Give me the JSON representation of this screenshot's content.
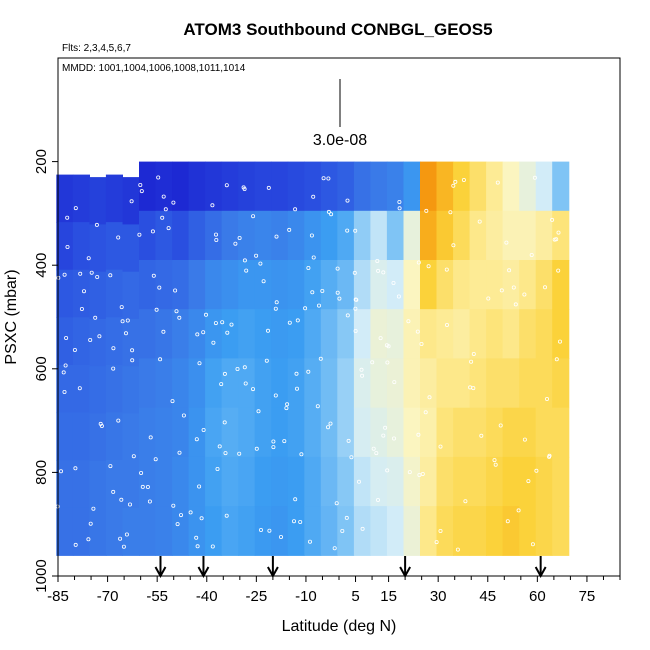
{
  "chart_data": {
    "type": "heatmap",
    "title": "ATOM3 Southbound CONBGL_GEOS5",
    "flights_note": "Flts: 2,3,4,5,6,7",
    "dates_note": "MMDD: 1001,1004,1006,1008,1011,1014",
    "xlabel": "Latitude (deg N)",
    "ylabel": "PSXC (mbar)",
    "xlim": [
      -85,
      85
    ],
    "ylim": [
      1000,
      0
    ],
    "x_ticks": [
      -85,
      -70,
      -55,
      -40,
      -25,
      -10,
      5,
      15,
      30,
      45,
      60,
      75
    ],
    "y_ticks": [
      200,
      400,
      600,
      800,
      1000
    ],
    "scale_bar_label": "3.0e-08",
    "arrow_latitudes": [
      -54,
      -41,
      -20,
      20,
      61
    ],
    "colormap": [
      "#1a1fd0",
      "#2a4fe0",
      "#3a7ae8",
      "#3b9df2",
      "#7fc4f5",
      "#d2ecf8",
      "#fbf5c0",
      "#fde88a",
      "#fbd23a",
      "#f7a414",
      "#ee6a00"
    ],
    "value_scale_note": "blue = low, white = mid, yellow/orange = high",
    "columns": [
      {
        "lat": -83,
        "p_top": 225,
        "p_bot": 960,
        "values": [
          0.05,
          0.08,
          0.12,
          0.14,
          0.16,
          0.17,
          0.18,
          0.18
        ]
      },
      {
        "lat": -78,
        "p_top": 225,
        "p_bot": 960,
        "values": [
          0.06,
          0.1,
          0.13,
          0.15,
          0.16,
          0.17,
          0.18,
          0.18
        ]
      },
      {
        "lat": -73,
        "p_top": 230,
        "p_bot": 960,
        "values": [
          0.07,
          0.11,
          0.14,
          0.16,
          0.17,
          0.18,
          0.19,
          0.19
        ]
      },
      {
        "lat": -68,
        "p_top": 225,
        "p_bot": 960,
        "values": [
          0.06,
          0.12,
          0.15,
          0.17,
          0.18,
          0.19,
          0.2,
          0.2
        ]
      },
      {
        "lat": -63,
        "p_top": 230,
        "p_bot": 960,
        "values": [
          0.05,
          0.12,
          0.16,
          0.18,
          0.19,
          0.2,
          0.2,
          0.21
        ]
      },
      {
        "lat": -58,
        "p_top": 200,
        "p_bot": 960,
        "values": [
          0.02,
          0.1,
          0.15,
          0.18,
          0.2,
          0.21,
          0.21,
          0.21
        ]
      },
      {
        "lat": -53,
        "p_top": 200,
        "p_bot": 960,
        "values": [
          0.03,
          0.12,
          0.16,
          0.19,
          0.21,
          0.22,
          0.22,
          0.22
        ]
      },
      {
        "lat": -48,
        "p_top": 200,
        "p_bot": 960,
        "values": [
          0.02,
          0.1,
          0.17,
          0.21,
          0.23,
          0.23,
          0.24,
          0.24
        ]
      },
      {
        "lat": -43,
        "p_top": 200,
        "p_bot": 960,
        "values": [
          0.04,
          0.14,
          0.2,
          0.24,
          0.26,
          0.27,
          0.27,
          0.27
        ]
      },
      {
        "lat": -38,
        "p_top": 200,
        "p_bot": 960,
        "values": [
          0.05,
          0.17,
          0.24,
          0.28,
          0.31,
          0.32,
          0.31,
          0.3
        ]
      },
      {
        "lat": -33,
        "p_top": 200,
        "p_bot": 960,
        "values": [
          0.06,
          0.2,
          0.26,
          0.3,
          0.33,
          0.34,
          0.33,
          0.32
        ]
      },
      {
        "lat": -28,
        "p_top": 200,
        "p_bot": 960,
        "values": [
          0.07,
          0.22,
          0.28,
          0.31,
          0.33,
          0.33,
          0.32,
          0.31
        ]
      },
      {
        "lat": -23,
        "p_top": 200,
        "p_bot": 960,
        "values": [
          0.08,
          0.23,
          0.28,
          0.3,
          0.31,
          0.31,
          0.3,
          0.29
        ]
      },
      {
        "lat": -18,
        "p_top": 200,
        "p_bot": 960,
        "values": [
          0.08,
          0.22,
          0.27,
          0.29,
          0.3,
          0.3,
          0.29,
          0.28
        ]
      },
      {
        "lat": -13,
        "p_top": 200,
        "p_bot": 960,
        "values": [
          0.09,
          0.24,
          0.28,
          0.3,
          0.31,
          0.31,
          0.3,
          0.3
        ]
      },
      {
        "lat": -8,
        "p_top": 200,
        "p_bot": 960,
        "values": [
          0.1,
          0.27,
          0.31,
          0.33,
          0.34,
          0.34,
          0.33,
          0.33
        ]
      },
      {
        "lat": -3,
        "p_top": 200,
        "p_bot": 960,
        "values": [
          0.12,
          0.3,
          0.34,
          0.37,
          0.38,
          0.38,
          0.37,
          0.36
        ]
      },
      {
        "lat": 2,
        "p_top": 200,
        "p_bot": 960,
        "values": [
          0.14,
          0.33,
          0.37,
          0.41,
          0.43,
          0.43,
          0.41,
          0.4
        ]
      },
      {
        "lat": 7,
        "p_top": 200,
        "p_bot": 960,
        "values": [
          0.18,
          0.42,
          0.46,
          0.5,
          0.52,
          0.51,
          0.48,
          0.46
        ]
      },
      {
        "lat": 12,
        "p_top": 200,
        "p_bot": 960,
        "values": [
          0.2,
          0.48,
          0.52,
          0.56,
          0.55,
          0.53,
          0.51,
          0.48
        ]
      },
      {
        "lat": 17,
        "p_top": 200,
        "p_bot": 960,
        "values": [
          0.22,
          0.4,
          0.5,
          0.55,
          0.56,
          0.55,
          0.52,
          0.5
        ]
      },
      {
        "lat": 22,
        "p_top": 200,
        "p_bot": 960,
        "values": [
          0.28,
          0.55,
          0.6,
          0.62,
          0.62,
          0.6,
          0.58,
          0.56
        ]
      },
      {
        "lat": 27,
        "p_top": 200,
        "p_bot": 960,
        "values": [
          0.92,
          0.88,
          0.8,
          0.7,
          0.66,
          0.64,
          0.66,
          0.7
        ]
      },
      {
        "lat": 32,
        "p_top": 200,
        "p_bot": 960,
        "values": [
          0.86,
          0.82,
          0.74,
          0.68,
          0.7,
          0.72,
          0.74,
          0.76
        ]
      },
      {
        "lat": 37,
        "p_top": 200,
        "p_bot": 960,
        "values": [
          0.8,
          0.76,
          0.7,
          0.66,
          0.7,
          0.74,
          0.76,
          0.78
        ]
      },
      {
        "lat": 42,
        "p_top": 200,
        "p_bot": 960,
        "values": [
          0.74,
          0.7,
          0.68,
          0.7,
          0.72,
          0.74,
          0.76,
          0.78
        ]
      },
      {
        "lat": 47,
        "p_top": 200,
        "p_bot": 960,
        "values": [
          0.68,
          0.66,
          0.68,
          0.72,
          0.74,
          0.76,
          0.78,
          0.8
        ]
      },
      {
        "lat": 52,
        "p_top": 200,
        "p_bot": 960,
        "values": [
          0.6,
          0.62,
          0.66,
          0.7,
          0.74,
          0.78,
          0.8,
          0.82
        ]
      },
      {
        "lat": 57,
        "p_top": 200,
        "p_bot": 960,
        "values": [
          0.55,
          0.62,
          0.7,
          0.74,
          0.76,
          0.78,
          0.8,
          0.8
        ]
      },
      {
        "lat": 62,
        "p_top": 200,
        "p_bot": 960,
        "values": [
          0.5,
          0.66,
          0.74,
          0.76,
          0.76,
          0.76,
          0.78,
          0.78
        ]
      },
      {
        "lat": 67,
        "p_top": 200,
        "p_bot": 960,
        "values": [
          0.4,
          0.72,
          0.8,
          0.8,
          0.78,
          0.76,
          0.76,
          0.76
        ]
      }
    ]
  }
}
